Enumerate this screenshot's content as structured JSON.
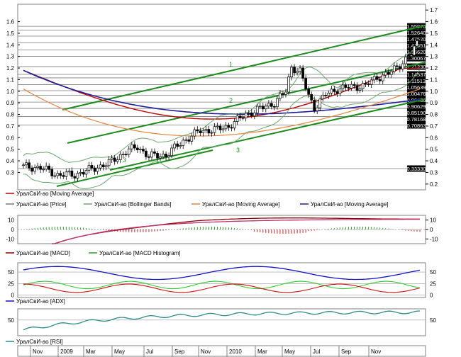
{
  "colors": {
    "price": "#000000",
    "bollinger": "#6aa86a",
    "ma_red": "#c00000",
    "ma_orange": "#e8843c",
    "ma_blue": "#1c1c9c",
    "channel": "#1a8c1a",
    "macd": "#8b0000",
    "macd_signal": "#c0306a",
    "macd_hist_pos": "#2a9d2a",
    "macd_hist_neg": "#d02020",
    "adx": "#1010c8",
    "di_plus": "#2ecc2e",
    "di_minus": "#d01010",
    "rsi": "#2e8b8b"
  },
  "chart_data": [
    {
      "type": "line",
      "panel": "price",
      "yticks": [
        "1.7",
        "1.6",
        "1.5",
        "1.4",
        "1.3",
        "1.2",
        "1.1",
        "1.0",
        "0.9",
        "0.8",
        "0.7",
        "0.6",
        "0.5",
        "0.4",
        "0.3",
        "0.2"
      ],
      "ylim": [
        0.15,
        1.75
      ],
      "left_ticks": [
        "1.6",
        "1.5",
        "1.4",
        "1.3",
        "1.2",
        "1.1",
        "1.0",
        "0.9",
        "0.8",
        "0.7",
        "0.6",
        "0.5",
        "0.4",
        "0.3"
      ],
      "price_labels": [
        "1.55970",
        "1.52640",
        "1.47520",
        "1.41651",
        "1.35620",
        "1.30067",
        "1.21230",
        "1.14537",
        "1.11513",
        "1.05639",
        "1.00476",
        "0.96436",
        "0.90629",
        "0.85190",
        "0.78168",
        "0.70863",
        "0.33330"
      ],
      "channel_labels": [
        {
          "text": "1",
          "line": "upper"
        },
        {
          "text": "2",
          "line": "middle"
        },
        {
          "text": "3",
          "line": "lower"
        },
        {
          "text": "3",
          "line": "lower-left"
        }
      ],
      "legend": [
        "УралСвИ-ао [Moving Average]",
        "УралСвИ-ао [Price]",
        "УралСвИ-ао [Bollinger Bands]",
        "УралСвИ-ао [Moving Average]",
        "УралСвИ-ао [Moving Average]"
      ]
    },
    {
      "type": "bar",
      "panel": "macd",
      "yticks": [
        "10",
        "0",
        "-10"
      ],
      "legend": [
        "УралСвИ-ао [MACD]",
        "УралСвИ-ао [MACD Histogram]"
      ]
    },
    {
      "type": "line",
      "panel": "adx",
      "yticks": [
        "50",
        "25",
        "0"
      ],
      "legend": [
        "УралСвИ-ао [ADX]"
      ]
    },
    {
      "type": "line",
      "panel": "rsi",
      "yticks": [
        "50"
      ],
      "legend": [
        "УралСвИ-ао [RSI]"
      ]
    }
  ],
  "xaxis": {
    "labels": [
      "Nov",
      "2009",
      "Mar",
      "May",
      "Jul",
      "Sep",
      "Nov",
      "2010",
      "Mar",
      "May",
      "Jul",
      "Sep",
      "Nov"
    ]
  }
}
